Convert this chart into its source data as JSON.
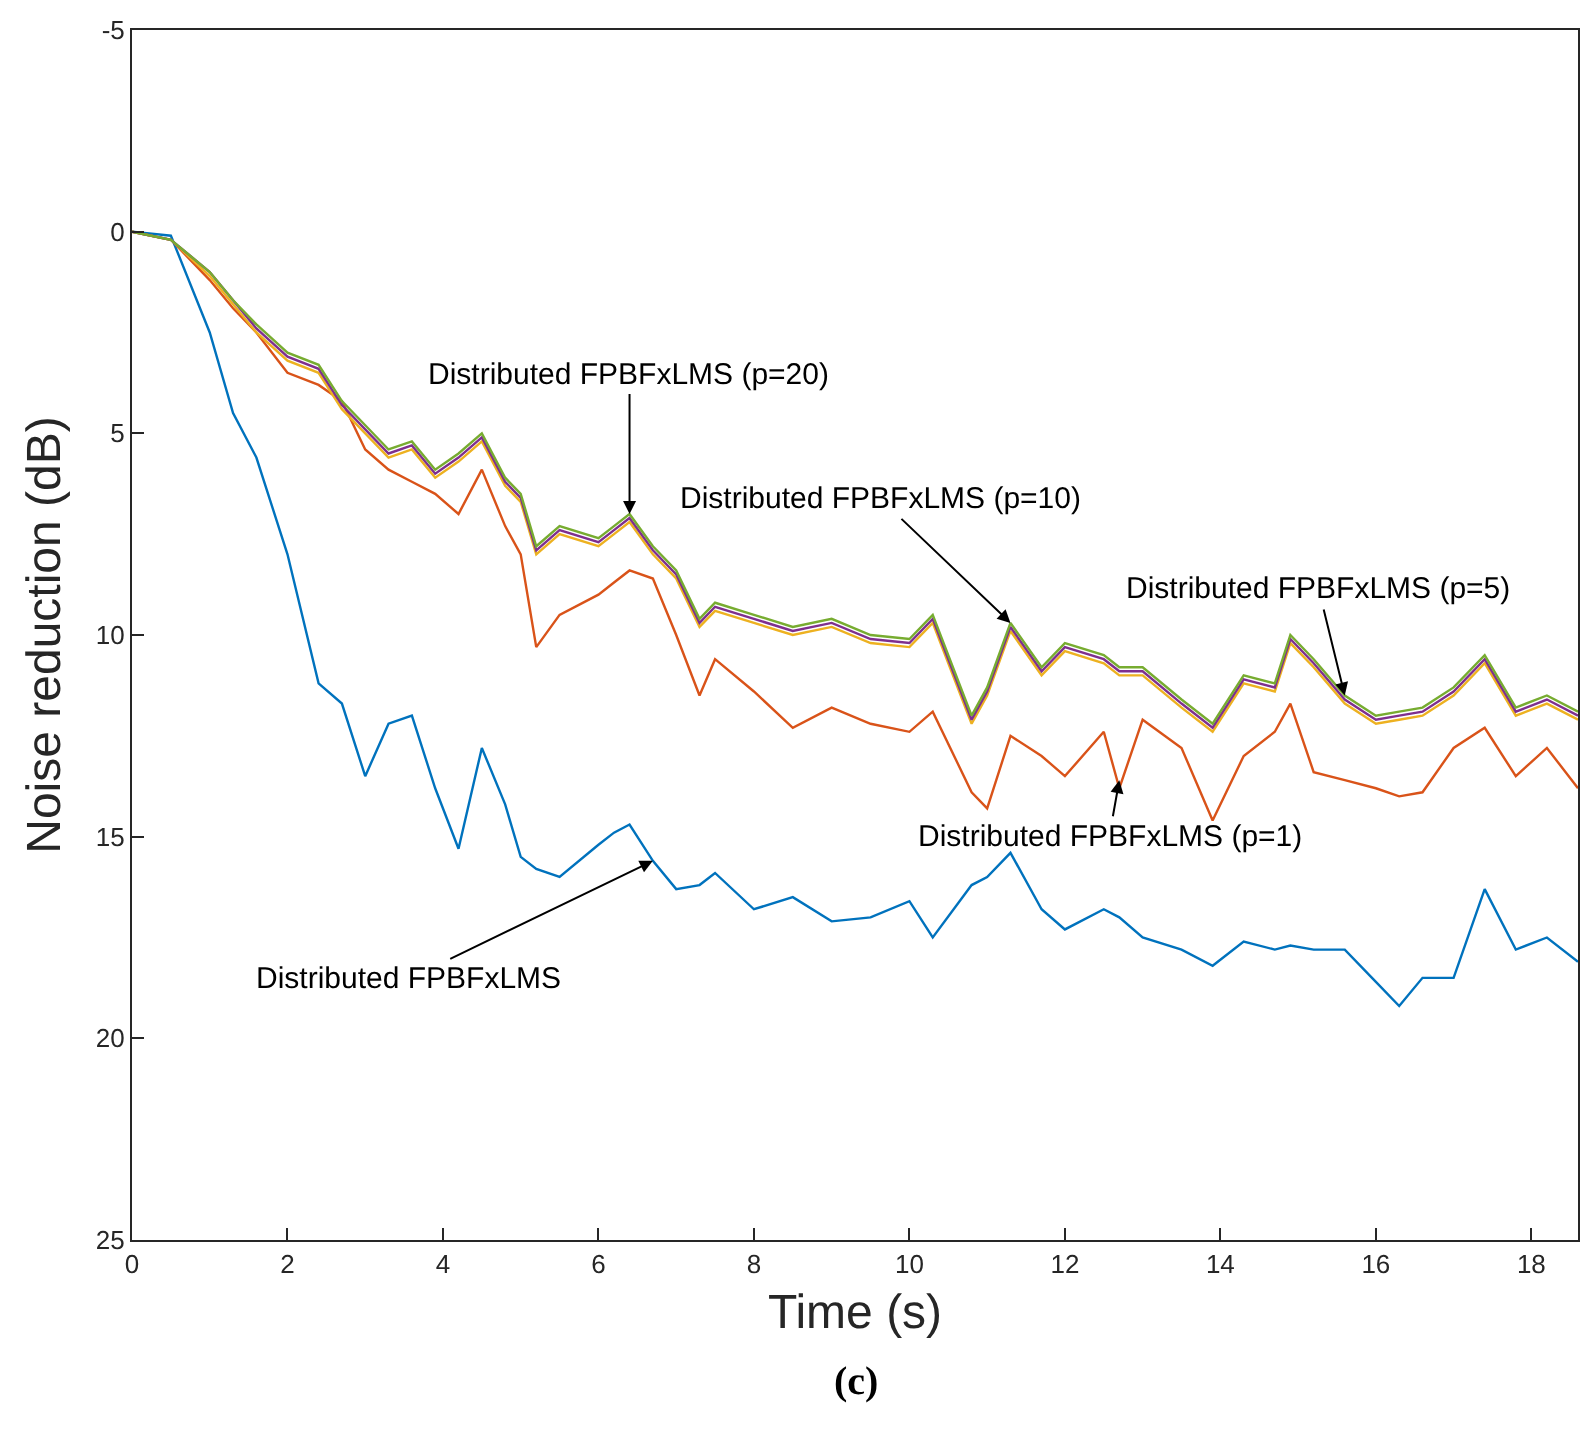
{
  "chart_data": {
    "type": "line",
    "xlabel": "Time (s)",
    "ylabel": "Noise reduction (dB)",
    "xlim": [
      0,
      18.6
    ],
    "ylim": [
      25,
      -5
    ],
    "xticks": [
      0,
      2,
      4,
      6,
      8,
      10,
      12,
      14,
      16,
      18
    ],
    "yticks": [
      -5,
      0,
      5,
      10,
      15,
      20,
      25
    ],
    "marker": "none",
    "line_style": "solid",
    "x": [
      0,
      0.5,
      1.0,
      1.3,
      1.6,
      2.0,
      2.4,
      2.7,
      3.0,
      3.3,
      3.6,
      3.9,
      4.2,
      4.5,
      4.8,
      5.0,
      5.2,
      5.5,
      6.0,
      6.2,
      6.4,
      6.7,
      7.0,
      7.3,
      7.5,
      8.0,
      8.5,
      9.0,
      9.5,
      10.0,
      10.3,
      10.8,
      11.0,
      11.3,
      11.7,
      12.0,
      12.5,
      12.7,
      13.0,
      13.5,
      13.9,
      14.3,
      14.7,
      14.9,
      15.2,
      15.6,
      16.0,
      16.3,
      16.6,
      17.0,
      17.4,
      17.8,
      18.2,
      18.6
    ],
    "series": [
      {
        "color": "#0072bd",
        "values": [
          0,
          0.1,
          2.5,
          4.5,
          5.6,
          8.0,
          11.2,
          11.7,
          13.5,
          12.2,
          12.0,
          13.8,
          15.3,
          12.8,
          14.2,
          15.5,
          15.8,
          16.0,
          15.2,
          14.9,
          14.7,
          15.6,
          16.3,
          16.2,
          15.9,
          16.8,
          16.5,
          17.1,
          17.0,
          16.6,
          17.5,
          16.2,
          16.0,
          15.4,
          16.8,
          17.3,
          16.8,
          17.0,
          17.5,
          17.8,
          18.2,
          17.6,
          17.8,
          17.7,
          17.8,
          17.8,
          18.6,
          19.2,
          18.5,
          18.5,
          16.3,
          17.8,
          17.5,
          18.1
        ]
      },
      {
        "color": "#d95319",
        "values": [
          0,
          0.2,
          1.2,
          1.9,
          2.5,
          3.5,
          3.8,
          4.2,
          5.4,
          5.9,
          6.2,
          6.5,
          7.0,
          5.9,
          7.3,
          8.0,
          10.3,
          9.5,
          9.0,
          8.7,
          8.4,
          8.6,
          10.0,
          11.5,
          10.6,
          11.4,
          12.3,
          11.8,
          12.2,
          12.4,
          11.9,
          13.9,
          14.3,
          12.5,
          13.0,
          13.5,
          12.4,
          13.8,
          12.1,
          12.8,
          14.6,
          13.0,
          12.4,
          11.7,
          13.4,
          13.6,
          13.8,
          14.0,
          13.9,
          12.8,
          12.3,
          13.5,
          12.8,
          13.8
        ]
      },
      {
        "color": "#edb120",
        "values": [
          0,
          0.2,
          1.1,
          1.8,
          2.5,
          3.2,
          3.5,
          4.4,
          5.0,
          5.6,
          5.4,
          6.1,
          5.7,
          5.2,
          6.3,
          6.7,
          8.0,
          7.5,
          7.8,
          7.5,
          7.2,
          8.0,
          8.6,
          9.8,
          9.4,
          9.7,
          10.0,
          9.8,
          10.2,
          10.3,
          9.7,
          12.2,
          11.5,
          9.9,
          11.0,
          10.4,
          10.7,
          11.0,
          11.0,
          11.8,
          12.4,
          11.2,
          11.4,
          10.2,
          10.8,
          11.7,
          12.2,
          12.1,
          12.0,
          11.5,
          10.7,
          12.0,
          11.7,
          12.1
        ]
      },
      {
        "color": "#7e2f8e",
        "values": [
          0,
          0.2,
          1.0,
          1.7,
          2.4,
          3.1,
          3.4,
          4.3,
          4.9,
          5.5,
          5.3,
          6.0,
          5.6,
          5.1,
          6.2,
          6.6,
          7.9,
          7.4,
          7.7,
          7.4,
          7.1,
          7.9,
          8.5,
          9.7,
          9.3,
          9.6,
          9.9,
          9.7,
          10.1,
          10.2,
          9.6,
          12.1,
          11.4,
          9.8,
          10.9,
          10.3,
          10.6,
          10.9,
          10.9,
          11.7,
          12.3,
          11.1,
          11.3,
          10.1,
          10.7,
          11.6,
          12.1,
          12.0,
          11.9,
          11.4,
          10.6,
          11.9,
          11.6,
          12.0
        ]
      },
      {
        "color": "#77ac30",
        "values": [
          0,
          0.2,
          1.0,
          1.7,
          2.3,
          3.0,
          3.3,
          4.2,
          4.8,
          5.4,
          5.2,
          5.9,
          5.5,
          5.0,
          6.1,
          6.5,
          7.8,
          7.3,
          7.6,
          7.3,
          7.0,
          7.8,
          8.4,
          9.6,
          9.2,
          9.5,
          9.8,
          9.6,
          10.0,
          10.1,
          9.5,
          12.0,
          11.3,
          9.7,
          10.8,
          10.2,
          10.5,
          10.8,
          10.8,
          11.6,
          12.2,
          11.0,
          11.2,
          10.0,
          10.6,
          11.5,
          12.0,
          11.9,
          11.8,
          11.3,
          10.5,
          11.8,
          11.5,
          11.9
        ]
      }
    ],
    "annotations": [
      {
        "text": "Distributed FPBFxLMS (p=20)",
        "x": 6.4,
        "y": 7.0
      },
      {
        "text": "Distributed FPBFxLMS (p=10)",
        "x": 11.3,
        "y": 9.7
      },
      {
        "text": "Distributed FPBFxLMS (p=5)",
        "x": 15.6,
        "y": 11.5
      },
      {
        "text": "Distributed FPBFxLMS (p=1)",
        "x": 12.7,
        "y": 13.6
      },
      {
        "text": "Distributed FPBFxLMS",
        "x": 6.7,
        "y": 15.6
      },
      "(c)"
    ]
  }
}
